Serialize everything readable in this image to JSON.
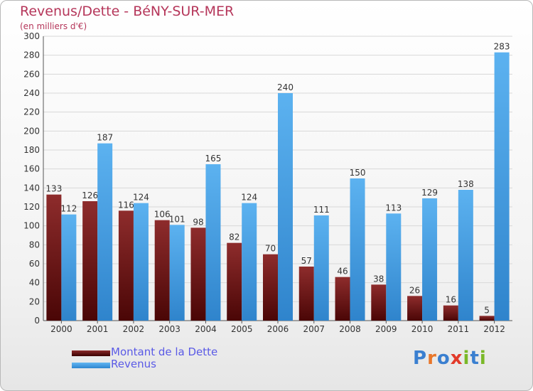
{
  "chart_data": {
    "type": "bar",
    "title": "Revenus/Dette - BéNY-SUR-MER",
    "subtitle": "(en milliers d'€)",
    "categories": [
      "2000",
      "2001",
      "2002",
      "2003",
      "2004",
      "2005",
      "2006",
      "2007",
      "2008",
      "2009",
      "2010",
      "2011",
      "2012"
    ],
    "series": [
      {
        "name": "Montant de la Dette",
        "color": "#7a1a1a",
        "values": [
          133,
          126,
          116,
          106,
          98,
          82,
          70,
          57,
          46,
          38,
          26,
          16,
          5
        ]
      },
      {
        "name": "Revenus",
        "color": "#4aa3e8",
        "values": [
          112,
          187,
          124,
          101,
          165,
          124,
          240,
          111,
          150,
          113,
          129,
          138,
          283
        ]
      }
    ],
    "y_ticks": [
      0,
      20,
      40,
      60,
      80,
      100,
      120,
      140,
      160,
      180,
      200,
      220,
      240,
      260,
      280,
      300
    ],
    "ylim": [
      0,
      300
    ],
    "grid": true,
    "legend_position": "bottom-left"
  },
  "logo": {
    "text": "Proxiti",
    "letters": [
      "P",
      "r",
      "o",
      "x",
      "i",
      "t",
      "i"
    ],
    "colors": [
      "#3a7fd0",
      "#e8762a",
      "#3a7fd0",
      "#e23a2a",
      "#7ab828",
      "#3a7fd0",
      "#7ab828"
    ]
  }
}
